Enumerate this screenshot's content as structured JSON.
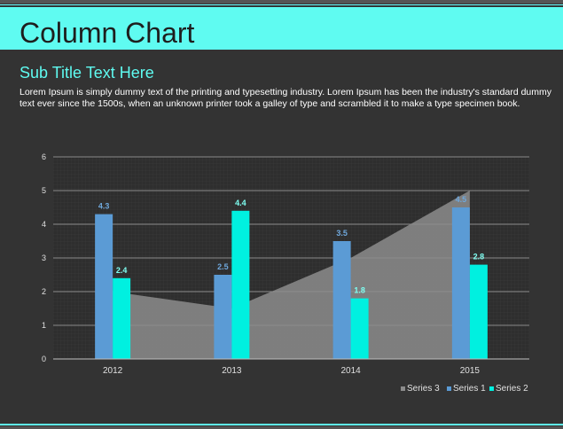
{
  "header": {
    "title": "Column Chart"
  },
  "subtitle": "Sub Title Text Here",
  "body_text": "Lorem Ipsum is simply dummy text of the printing and typesetting industry. Lorem Ipsum has been the industry's standard dummy text ever since the 1500s, when an unknown printer took a galley of type and scrambled it to make a type specimen book.",
  "colors": {
    "accent": "#5ffbf1",
    "series1": "#5b9bd5",
    "series2": "#00f0e0",
    "series3": "#8c8c8c",
    "series1_label": "#6fa8dc",
    "series2_label": "#7ffff2"
  },
  "chart_data": {
    "type": "bar",
    "categories": [
      "2012",
      "2013",
      "2014",
      "2015"
    ],
    "series": [
      {
        "name": "Series 1",
        "type": "bar",
        "values": [
          4.3,
          2.5,
          3.5,
          4.5
        ]
      },
      {
        "name": "Series 2",
        "type": "bar",
        "values": [
          2.4,
          4.4,
          1.8,
          2.8
        ]
      },
      {
        "name": "Series 3",
        "type": "area",
        "values": [
          2,
          1.5,
          3,
          5
        ]
      }
    ],
    "ylim": [
      0,
      6
    ],
    "yticks": [
      "0",
      "1",
      "2",
      "3",
      "4",
      "5",
      "6"
    ],
    "legend": {
      "position": "bottom-right",
      "entries": [
        "Series 3",
        "Series 1",
        "Series 2"
      ]
    },
    "grid": true
  }
}
